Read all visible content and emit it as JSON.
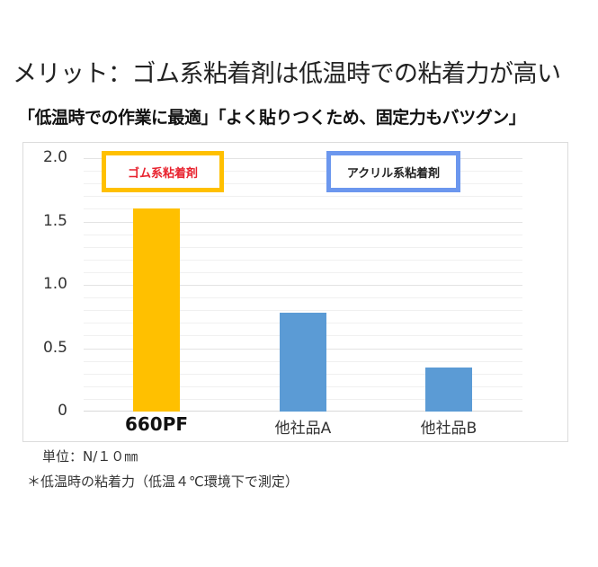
{
  "header": {
    "title": "メリット：ゴム系粘着剤は低温時での粘着力が高い",
    "subtitle": "「低温時での作業に最適」「よく貼りつくため、固定力もバツグン」"
  },
  "legend": {
    "rubber": "ゴム系粘着剤",
    "acrylic": "アクリル系粘着剤"
  },
  "footer": {
    "unit": "単位：N/１０㎜",
    "note": "＊低温時の粘着力（低温４℃環境下で測定）"
  },
  "colors": {
    "rubber_bar": "#ffc000",
    "acrylic_bar": "#5b9bd5",
    "rubber_legend_border": "#ffc000",
    "rubber_legend_text": "#e8232f",
    "acrylic_legend_border": "#6c97ee"
  },
  "chart_data": {
    "type": "bar",
    "title": "",
    "categories": [
      "660PF",
      "他社品A",
      "他社品B"
    ],
    "values": [
      1.6,
      0.78,
      0.35
    ],
    "bar_colors": [
      "#ffc000",
      "#5b9bd5",
      "#5b9bd5"
    ],
    "series": [
      {
        "name": "ゴム系粘着剤",
        "categories": [
          "660PF"
        ],
        "values": [
          1.6
        ]
      },
      {
        "name": "アクリル系粘着剤",
        "categories": [
          "他社品A",
          "他社品B"
        ],
        "values": [
          0.78,
          0.35
        ]
      }
    ],
    "yticks": [
      "0",
      "0.5",
      "1.0",
      "1.5",
      "2.0"
    ],
    "ylim": [
      0,
      2.0
    ],
    "minor_grid_step": 0.1,
    "grid": true,
    "xlabel": "",
    "ylabel": "",
    "unit": "N/10mm",
    "legend_position": "top (boxed labels inside plot)"
  }
}
